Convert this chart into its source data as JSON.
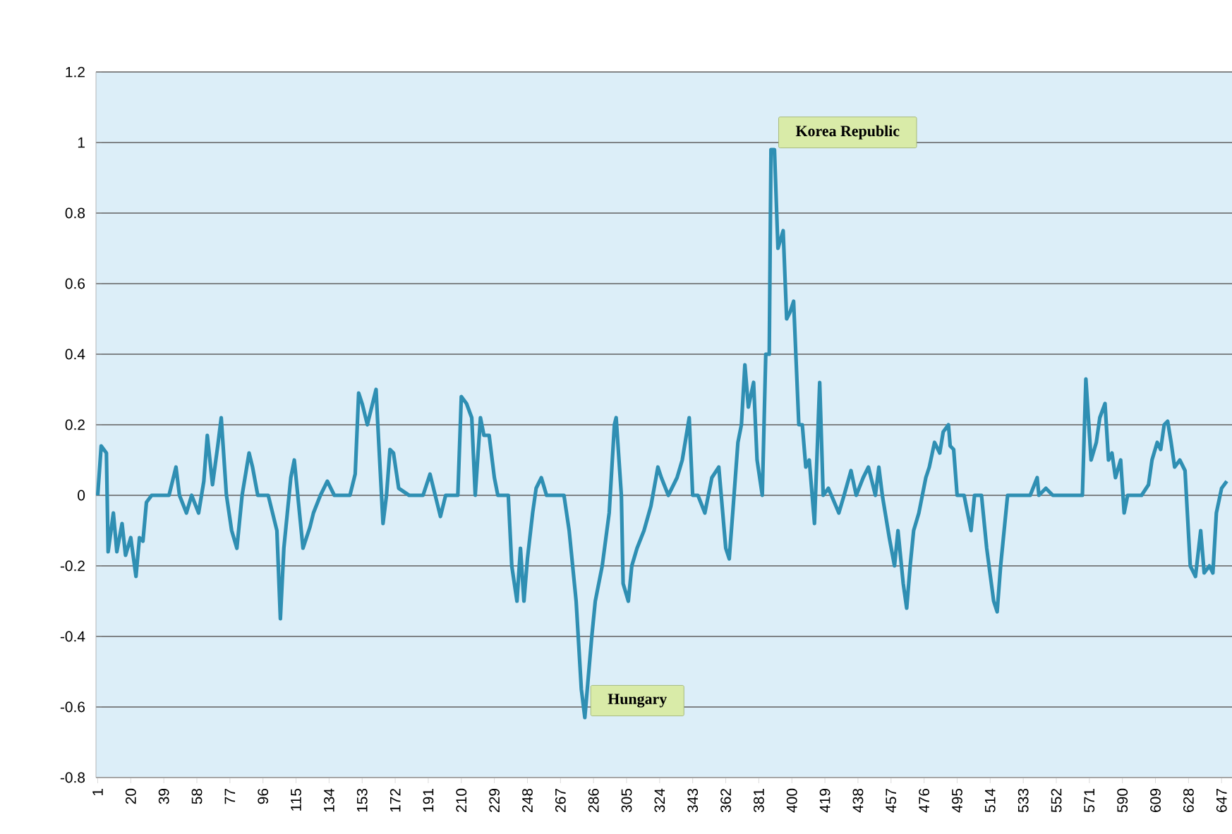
{
  "chart_data": {
    "type": "line",
    "x": [
      1,
      3,
      6,
      7,
      10,
      12,
      15,
      17,
      20,
      23,
      25,
      27,
      29,
      32,
      42,
      46,
      48,
      52,
      55,
      59,
      62,
      64,
      67,
      70,
      72,
      75,
      78,
      81,
      84,
      88,
      90,
      93,
      99,
      104,
      106,
      108,
      110,
      112,
      114,
      117,
      119,
      123,
      125,
      129,
      133,
      137,
      146,
      149,
      151,
      153,
      156,
      158,
      161,
      162,
      165,
      167,
      169,
      171,
      174,
      180,
      188,
      192,
      195,
      198,
      201,
      208,
      210,
      213,
      216,
      218,
      221,
      223,
      226,
      229,
      231,
      237,
      239,
      242,
      244,
      246,
      248,
      251,
      253,
      256,
      259,
      265,
      269,
      272,
      276,
      279,
      281,
      285,
      287,
      291,
      295,
      298,
      299,
      302,
      303,
      306,
      308,
      311,
      315,
      319,
      323,
      325,
      329,
      334,
      337,
      341,
      343,
      346,
      350,
      354,
      358,
      362,
      364,
      366,
      369,
      371,
      373,
      375,
      378,
      380,
      383,
      385,
      387,
      388,
      390,
      392,
      395,
      397,
      399,
      401,
      404,
      406,
      408,
      410,
      413,
      416,
      418,
      421,
      427,
      430,
      434,
      437,
      441,
      444,
      448,
      450,
      452,
      456,
      459,
      461,
      464,
      466,
      468,
      470,
      473,
      477,
      479,
      482,
      485,
      487,
      490,
      491,
      493,
      495,
      499,
      503,
      505,
      509,
      512,
      516,
      518,
      520,
      524,
      529,
      537,
      541,
      542,
      546,
      550,
      567,
      569,
      572,
      575,
      577,
      580,
      582,
      584,
      586,
      589,
      591,
      593,
      601,
      605,
      607,
      610,
      612,
      614,
      616,
      618,
      620,
      623,
      626,
      629,
      632,
      635,
      637,
      640,
      642,
      644,
      647,
      650
    ],
    "series": [
      {
        "color": "#2f8fb3",
        "values": [
          0.0,
          0.14,
          0.12,
          -0.16,
          -0.05,
          -0.16,
          -0.08,
          -0.17,
          -0.12,
          -0.23,
          -0.12,
          -0.13,
          -0.02,
          0.0,
          0.0,
          0.08,
          0.0,
          -0.05,
          0.0,
          -0.05,
          0.04,
          0.17,
          0.03,
          0.14,
          0.22,
          0.0,
          -0.1,
          -0.15,
          0.0,
          0.12,
          0.08,
          0.0,
          0.0,
          -0.1,
          -0.35,
          -0.15,
          -0.05,
          0.05,
          0.1,
          -0.05,
          -0.15,
          -0.09,
          -0.05,
          0.0,
          0.04,
          0.0,
          0.0,
          0.06,
          0.29,
          0.26,
          0.2,
          0.24,
          0.3,
          0.2,
          -0.08,
          0.0,
          0.13,
          0.12,
          0.02,
          0.0,
          0.0,
          0.06,
          0.0,
          -0.06,
          0.0,
          0.0,
          0.28,
          0.26,
          0.22,
          0.0,
          0.22,
          0.17,
          0.17,
          0.05,
          0.0,
          0.0,
          -0.2,
          -0.3,
          -0.15,
          -0.3,
          -0.18,
          -0.05,
          0.02,
          0.05,
          0.0,
          0.0,
          0.0,
          -0.1,
          -0.3,
          -0.55,
          -0.63,
          -0.4,
          -0.3,
          -0.2,
          -0.05,
          0.2,
          0.22,
          0.0,
          -0.25,
          -0.3,
          -0.2,
          -0.15,
          -0.1,
          -0.03,
          0.08,
          0.05,
          0.0,
          0.05,
          0.1,
          0.22,
          0.0,
          0.0,
          -0.05,
          0.05,
          0.08,
          -0.15,
          -0.18,
          -0.05,
          0.15,
          0.2,
          0.37,
          0.25,
          0.32,
          0.1,
          0.0,
          0.4,
          0.4,
          0.98,
          0.98,
          0.7,
          0.75,
          0.5,
          0.52,
          0.55,
          0.2,
          0.2,
          0.08,
          0.1,
          -0.08,
          0.32,
          0.0,
          0.02,
          -0.05,
          0.0,
          0.07,
          0.0,
          0.05,
          0.08,
          0.0,
          0.08,
          0.0,
          -0.12,
          -0.2,
          -0.1,
          -0.25,
          -0.32,
          -0.2,
          -0.1,
          -0.05,
          0.05,
          0.08,
          0.15,
          0.12,
          0.18,
          0.2,
          0.14,
          0.13,
          0.0,
          0.0,
          -0.1,
          0.0,
          0.0,
          -0.15,
          -0.3,
          -0.33,
          -0.2,
          0.0,
          0.0,
          0.0,
          0.05,
          0.0,
          0.02,
          0.0,
          0.0,
          0.33,
          0.1,
          0.15,
          0.22,
          0.26,
          0.1,
          0.12,
          0.05,
          0.1,
          -0.05,
          0.0,
          0.0,
          0.03,
          0.1,
          0.15,
          0.13,
          0.2,
          0.21,
          0.15,
          0.08,
          0.1,
          0.07,
          -0.2,
          -0.23,
          -0.1,
          -0.22,
          -0.2,
          -0.22,
          -0.05,
          0.02,
          0.04
        ]
      }
    ],
    "xlim": [
      0,
      653
    ],
    "xticks": [
      1,
      20,
      39,
      58,
      77,
      96,
      115,
      134,
      153,
      172,
      191,
      210,
      229,
      248,
      267,
      286,
      305,
      324,
      343,
      362,
      381,
      400,
      419,
      438,
      457,
      476,
      495,
      514,
      533,
      552,
      571,
      590,
      609,
      628,
      647
    ],
    "ylim": [
      -0.8,
      1.2
    ],
    "yticks": [
      -0.8,
      -0.6,
      -0.4,
      -0.2,
      0,
      0.2,
      0.4,
      0.6,
      0.8,
      1,
      1.2
    ],
    "grid": "y",
    "marker": "none",
    "line_style": "solid",
    "annotations": [
      {
        "text": "Korea Republic",
        "x": 389,
        "y": 0.98
      },
      {
        "text": "Hungary",
        "x": 281,
        "y": -0.63
      }
    ]
  }
}
